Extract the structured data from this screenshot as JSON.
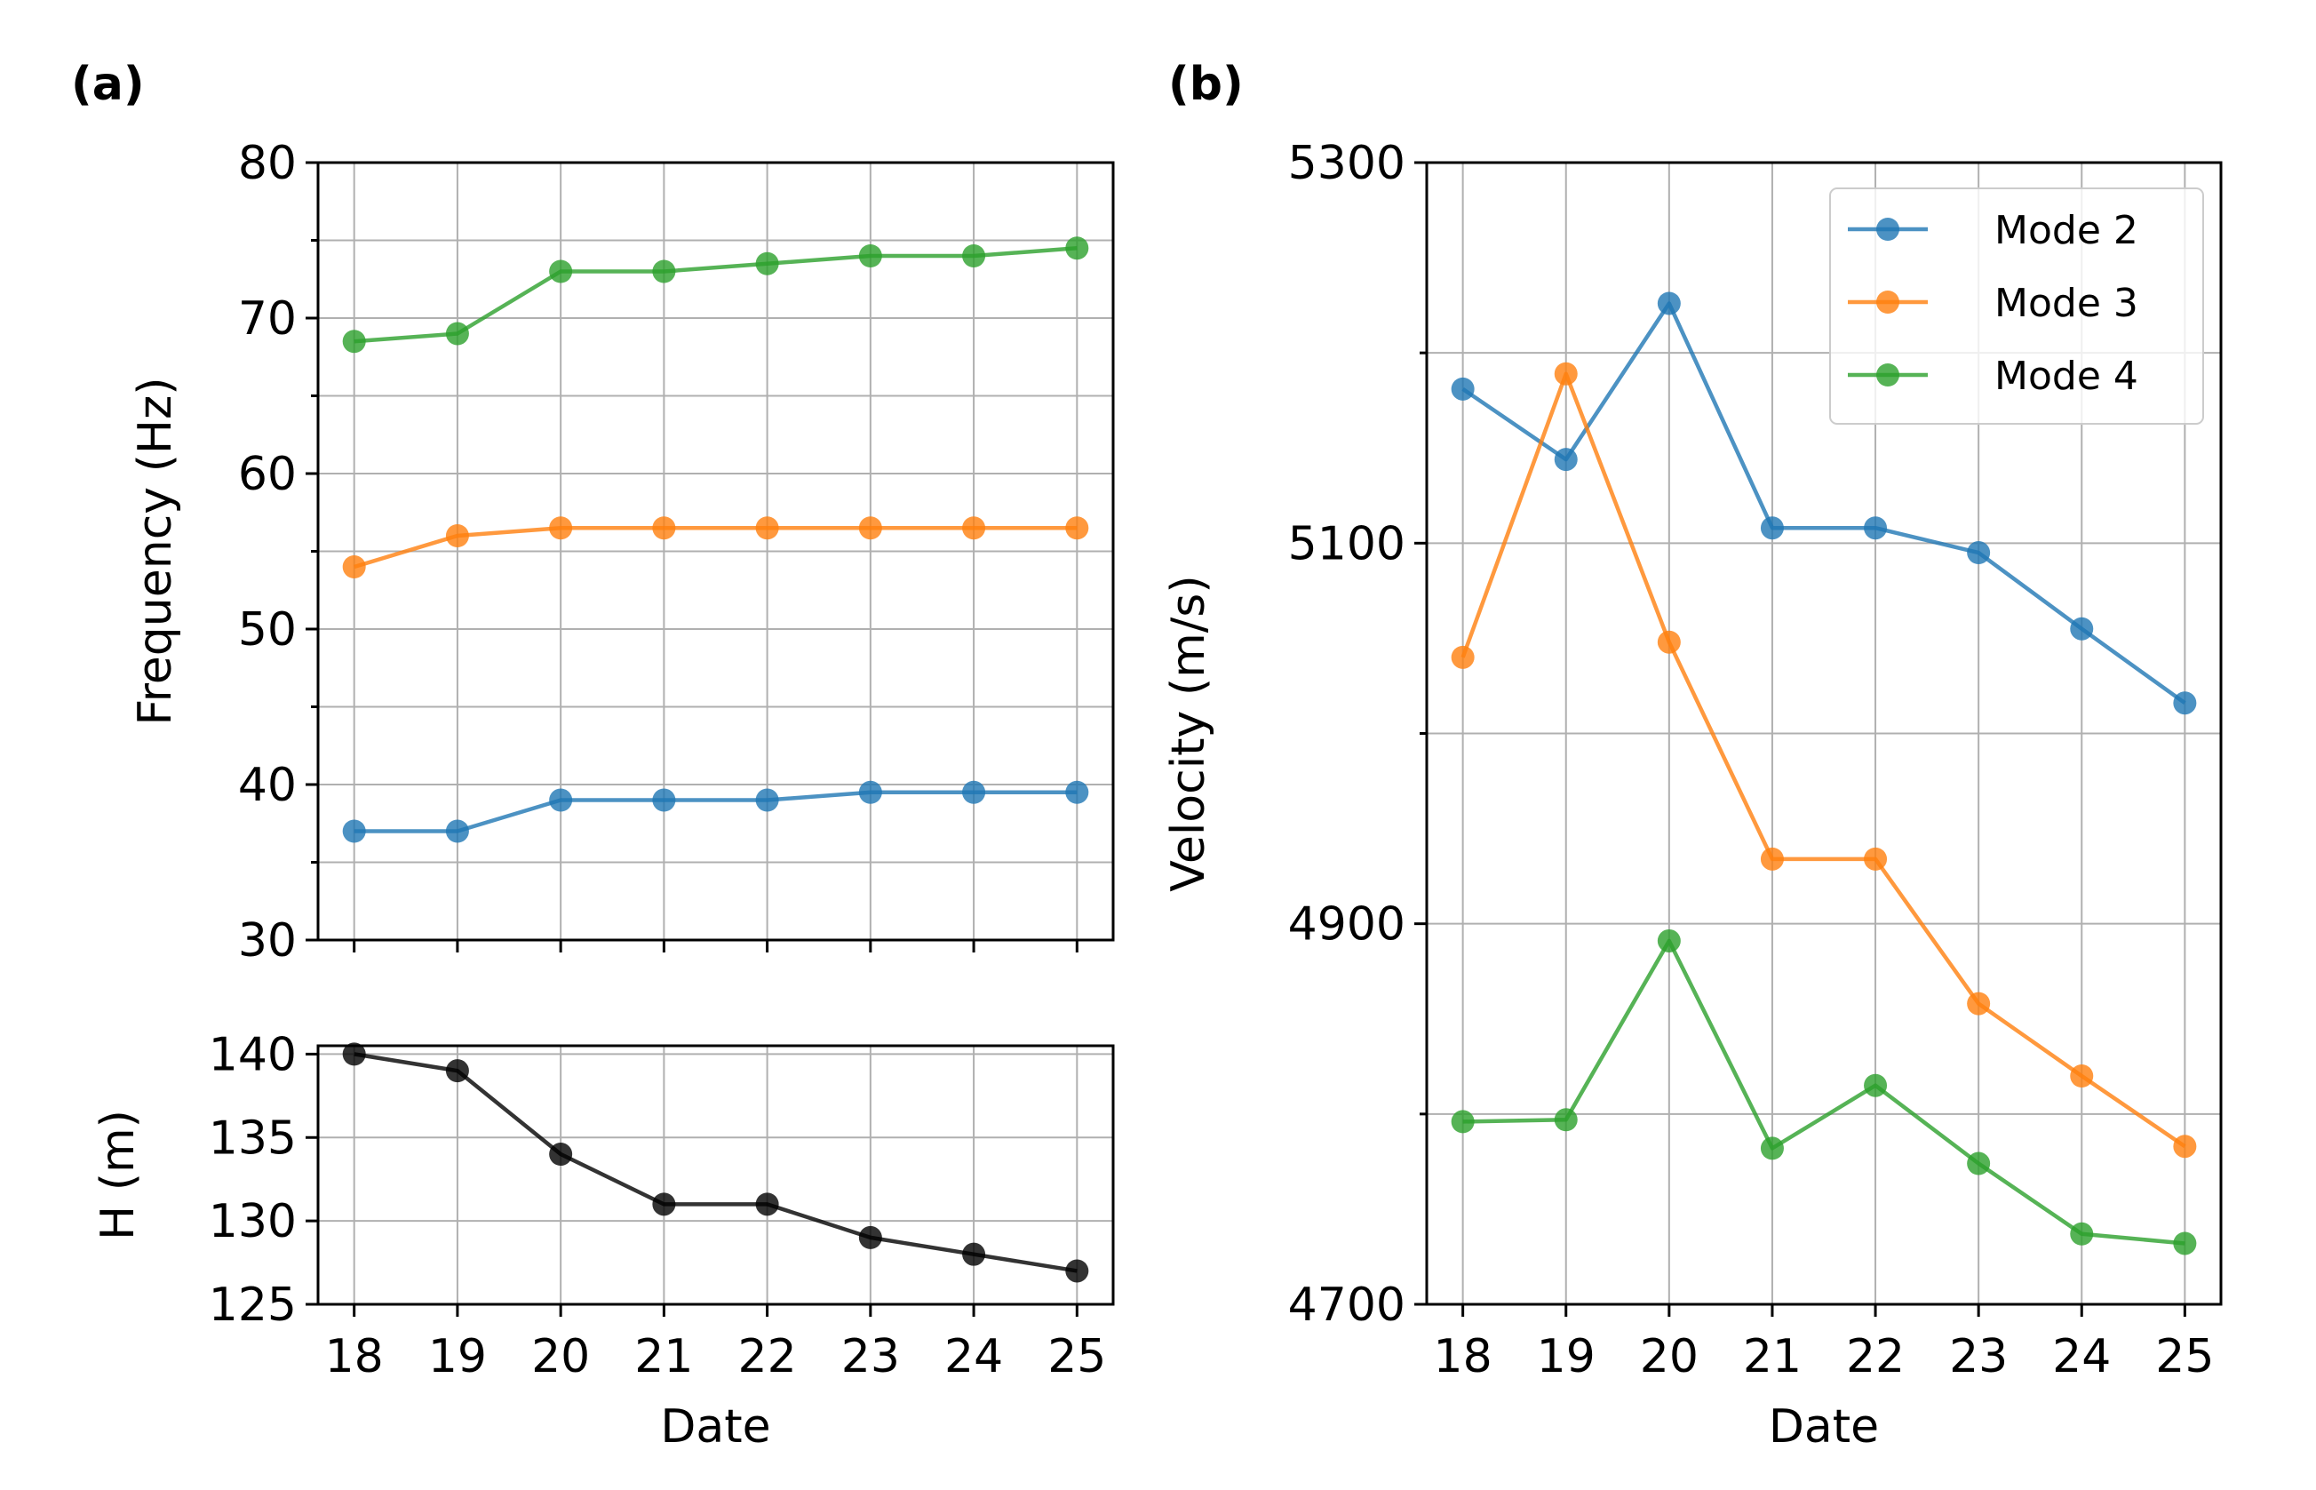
{
  "colors": {
    "mode2": "#1f77b4",
    "mode3": "#ff7f0e",
    "mode4": "#2ca02c",
    "height": "#000000"
  },
  "chart_data": [
    {
      "id": "freq",
      "panel_label": "(a)",
      "type": "line",
      "xlabel": "",
      "ylabel": "Frequency (Hz)",
      "x": [
        18,
        19,
        20,
        21,
        22,
        23,
        24,
        25
      ],
      "xticks": [
        18,
        19,
        20,
        21,
        22,
        23,
        24,
        25
      ],
      "xlim": [
        17.65,
        25.35
      ],
      "ylim": [
        30,
        80
      ],
      "yticks": [
        30,
        40,
        50,
        60,
        70,
        80
      ],
      "yminor_step": 5,
      "grid": true,
      "series": [
        {
          "name": "Mode 2",
          "color_key": "mode2",
          "values": [
            37.0,
            37.0,
            39.0,
            39.0,
            39.0,
            39.5,
            39.5,
            39.5
          ]
        },
        {
          "name": "Mode 3",
          "color_key": "mode3",
          "values": [
            54.0,
            56.0,
            56.5,
            56.5,
            56.5,
            56.5,
            56.5,
            56.5
          ]
        },
        {
          "name": "Mode 4",
          "color_key": "mode4",
          "values": [
            68.5,
            69.0,
            73.0,
            73.0,
            73.5,
            74.0,
            74.0,
            74.5
          ]
        }
      ]
    },
    {
      "id": "height",
      "panel_label": "",
      "type": "line",
      "xlabel": "Date",
      "ylabel": "H (m)",
      "x": [
        18,
        19,
        20,
        21,
        22,
        23,
        24,
        25
      ],
      "xticks": [
        18,
        19,
        20,
        21,
        22,
        23,
        24,
        25
      ],
      "xlim": [
        17.65,
        25.35
      ],
      "ylim": [
        125,
        140.5
      ],
      "yticks": [
        125,
        130,
        135,
        140
      ],
      "grid": true,
      "series": [
        {
          "name": "H",
          "color_key": "height",
          "values": [
            140,
            139,
            134,
            131,
            131,
            129,
            128,
            127
          ]
        }
      ]
    },
    {
      "id": "velocity",
      "panel_label": "(b)",
      "type": "line",
      "xlabel": "Date",
      "ylabel": "Velocity (m/s)",
      "x": [
        18,
        19,
        20,
        21,
        22,
        23,
        24,
        25
      ],
      "xticks": [
        18,
        19,
        20,
        21,
        22,
        23,
        24,
        25
      ],
      "xlim": [
        17.65,
        25.35
      ],
      "ylim": [
        4700,
        5300
      ],
      "yticks": [
        4700,
        4900,
        5100,
        5300
      ],
      "yminor_step": 100,
      "grid": true,
      "legend": "top-right",
      "series": [
        {
          "name": "Mode 2",
          "color_key": "mode2",
          "values": [
            5181,
            5144,
            5226,
            5108,
            5108,
            5095,
            5055,
            5016
          ]
        },
        {
          "name": "Mode 3",
          "color_key": "mode3",
          "values": [
            5040,
            5189,
            5048,
            4934,
            4934,
            4858,
            4820,
            4783
          ]
        },
        {
          "name": "Mode 4",
          "color_key": "mode4",
          "values": [
            4796,
            4797,
            4891,
            4782,
            4815,
            4774,
            4737,
            4732
          ]
        }
      ]
    }
  ]
}
